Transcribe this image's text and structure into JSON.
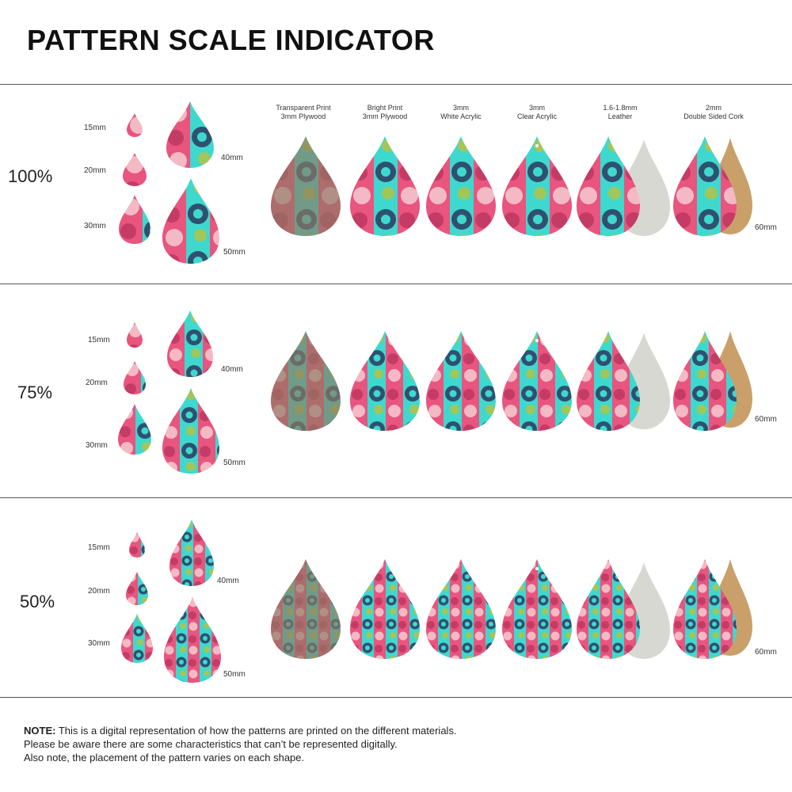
{
  "title": "PATTERN SCALE INDICATOR",
  "colors": {
    "pink": "#e8557e",
    "teal": "#3fd8cf",
    "navy": "#2e5170",
    "lightpink": "#f3b9c4",
    "lime": "#b9c23d",
    "wood": "#8c7a62",
    "leather": "#d8d8d2",
    "cork": "#c9a06a"
  },
  "size_labels": [
    "15mm",
    "20mm",
    "30mm",
    "40mm",
    "50mm"
  ],
  "size_60": "60mm",
  "materials": [
    {
      "line1": "Transparent Print",
      "line2": "3mm Plywood"
    },
    {
      "line1": "Bright Print",
      "line2": "3mm Plywood"
    },
    {
      "line1": "3mm",
      "line2": "White Acrylic"
    },
    {
      "line1": "3mm",
      "line2": "Clear Acrylic"
    },
    {
      "line1": "1.6-1.8mm",
      "line2": "Leather"
    },
    {
      "line1": "2mm",
      "line2": "Double Sided Cork"
    }
  ],
  "sections": [
    {
      "scale": "100%"
    },
    {
      "scale": "75%"
    },
    {
      "scale": "50%"
    }
  ],
  "note": {
    "label": "NOTE:",
    "line1": "This is a digital representation of how the patterns are printed on the different materials.",
    "line2": "Please be aware there are some characteristics that can’t be represented digitally.",
    "line3": "Also note, the placement of the pattern varies on each shape."
  }
}
